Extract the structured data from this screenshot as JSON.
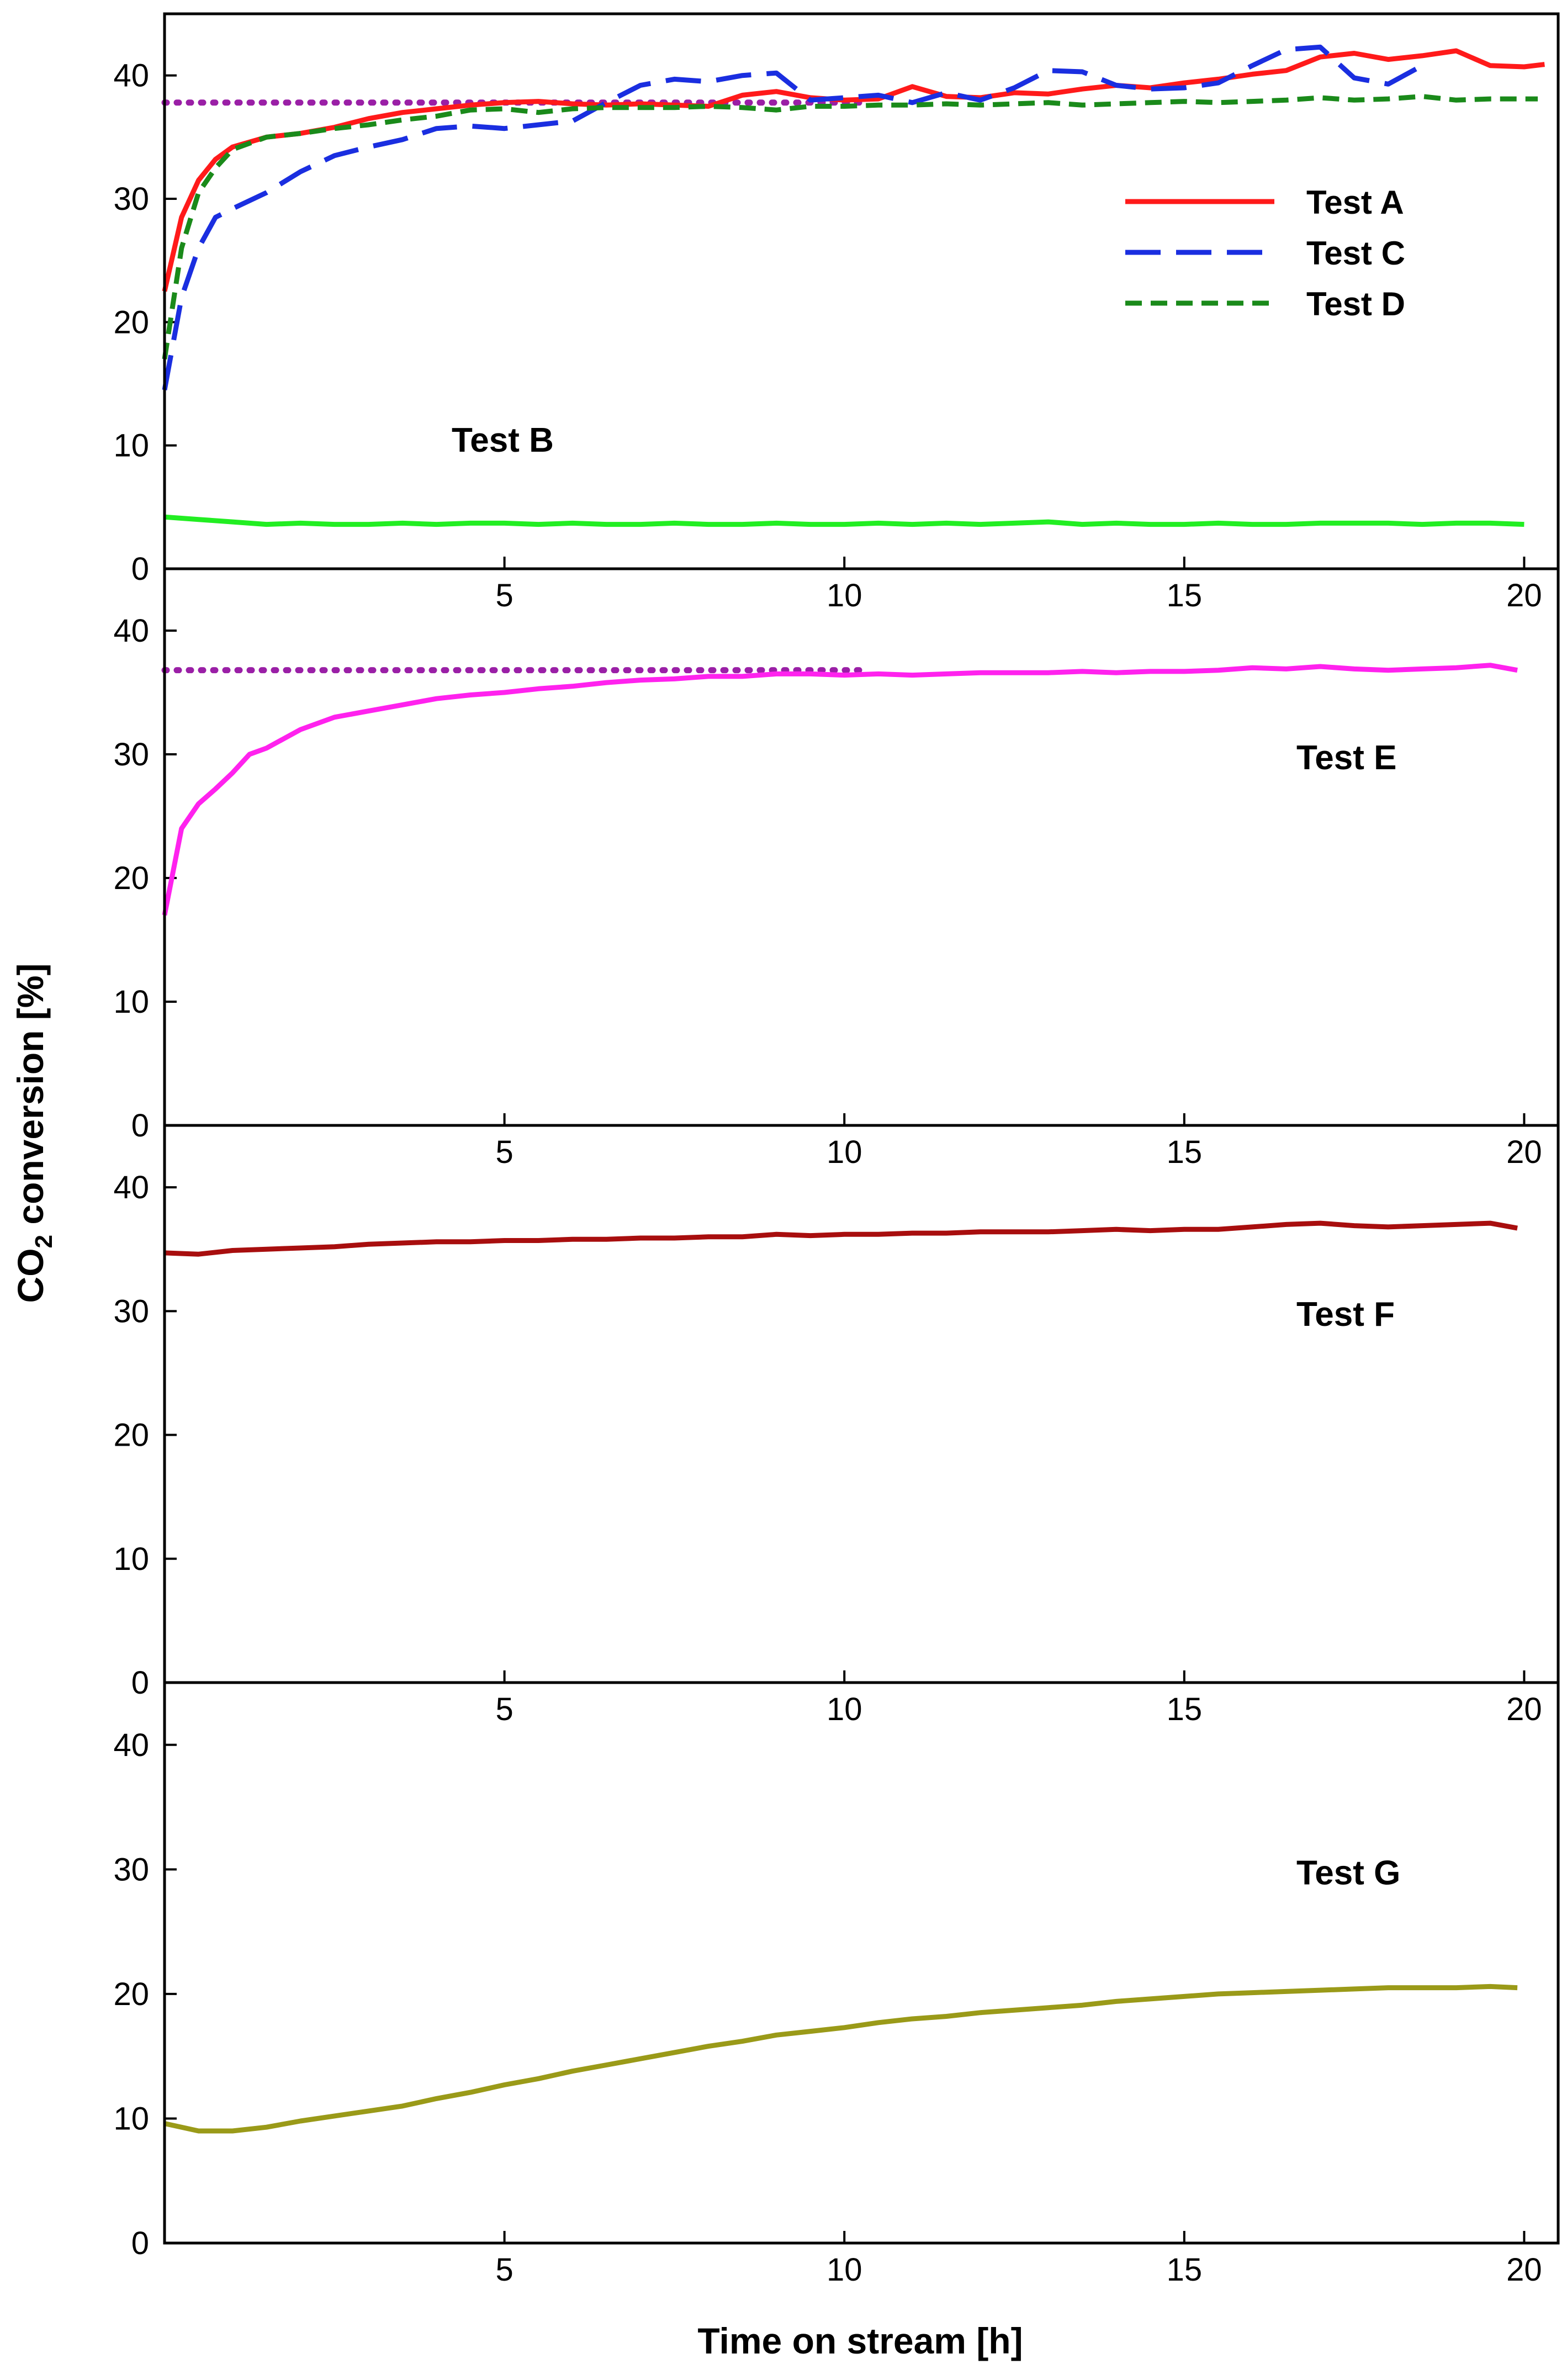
{
  "chart_data": [
    {
      "type": "line",
      "panel": "top",
      "xlim": [
        0,
        20.5
      ],
      "ylim": [
        0,
        45
      ],
      "x_ticks": [
        5,
        10,
        15,
        20
      ],
      "y_ticks": [
        0,
        10,
        20,
        30,
        40
      ],
      "grid": false,
      "legend_position": "top-right",
      "reference_line": {
        "y": 37.8,
        "x_start": 0,
        "x_end": 10.3,
        "color": "#9a1fa6",
        "style": "dotted"
      },
      "series": [
        {
          "name": "Test A",
          "legend": true,
          "color": "#ff1a1a",
          "style": "solid",
          "x": [
            0,
            0.25,
            0.5,
            0.75,
            1,
            1.5,
            2,
            2.5,
            3,
            3.5,
            4,
            4.5,
            5,
            5.5,
            6,
            6.5,
            7,
            7.5,
            8,
            8.5,
            9,
            9.5,
            10,
            10.5,
            11,
            11.5,
            12,
            12.5,
            13,
            13.5,
            14,
            14.5,
            15,
            15.5,
            16,
            16.5,
            17,
            17.5,
            18,
            18.5,
            19,
            19.5,
            20,
            20.3
          ],
          "values": [
            22.5,
            28.5,
            31.5,
            33.2,
            34.2,
            35.0,
            35.3,
            35.8,
            36.5,
            37.0,
            37.3,
            37.6,
            37.8,
            37.9,
            37.7,
            37.6,
            37.7,
            37.6,
            37.5,
            38.4,
            38.7,
            38.2,
            38.0,
            38.1,
            39.1,
            38.3,
            38.2,
            38.6,
            38.5,
            38.9,
            39.2,
            39.0,
            39.4,
            39.7,
            40.1,
            40.4,
            41.5,
            41.8,
            41.3,
            41.6,
            42.0,
            40.8,
            40.7,
            40.9
          ]
        },
        {
          "name": "Test C",
          "legend": true,
          "color": "#1a2ee0",
          "style": "long-dash",
          "x": [
            0,
            0.25,
            0.5,
            0.75,
            1,
            1.5,
            2,
            2.5,
            3,
            3.5,
            4,
            4.5,
            5,
            5.5,
            6,
            6.5,
            7,
            7.5,
            8,
            8.5,
            9,
            9.5,
            10,
            10.5,
            11,
            11.5,
            12,
            12.5,
            13,
            13.5,
            14,
            14.5,
            15,
            15.5,
            16,
            16.5,
            17,
            17.5,
            18,
            18.5
          ],
          "values": [
            14.5,
            22.0,
            26.0,
            28.5,
            29.2,
            30.5,
            32.2,
            33.5,
            34.2,
            34.8,
            35.7,
            35.9,
            35.7,
            36.0,
            36.3,
            37.8,
            39.2,
            39.7,
            39.5,
            40.0,
            40.2,
            38.0,
            38.2,
            38.4,
            37.8,
            38.6,
            38.0,
            39.0,
            40.4,
            40.3,
            39.2,
            38.9,
            39.0,
            39.4,
            40.8,
            42.1,
            42.3,
            39.8,
            39.3,
            40.8
          ]
        },
        {
          "name": "Test D",
          "legend": true,
          "color": "#1a8a1a",
          "style": "short-dash",
          "x": [
            0,
            0.25,
            0.5,
            0.75,
            1,
            1.5,
            2,
            2.5,
            3,
            3.5,
            4,
            4.5,
            5,
            5.5,
            6,
            6.5,
            7,
            7.5,
            8,
            8.5,
            9,
            9.5,
            10,
            10.5,
            11,
            11.5,
            12,
            12.5,
            13,
            13.5,
            14,
            14.5,
            15,
            15.5,
            16,
            16.5,
            17,
            17.5,
            18,
            18.5,
            19,
            19.5,
            20,
            20.2
          ],
          "values": [
            17.0,
            26.0,
            30.5,
            32.5,
            34.0,
            35.0,
            35.3,
            35.7,
            36.0,
            36.4,
            36.7,
            37.2,
            37.3,
            37.0,
            37.3,
            37.4,
            37.4,
            37.4,
            37.5,
            37.4,
            37.2,
            37.5,
            37.5,
            37.6,
            37.6,
            37.7,
            37.6,
            37.7,
            37.8,
            37.6,
            37.7,
            37.8,
            37.9,
            37.8,
            37.9,
            38.0,
            38.2,
            38.0,
            38.1,
            38.3,
            38.0,
            38.1,
            38.1,
            38.1
          ]
        },
        {
          "name": "Test B",
          "legend": false,
          "color": "#22ee22",
          "style": "solid",
          "label": "Test B",
          "label_position": "lower-left",
          "x": [
            0,
            0.5,
            1,
            1.5,
            2,
            2.5,
            3,
            3.5,
            4,
            4.5,
            5,
            5.5,
            6,
            6.5,
            7,
            7.5,
            8,
            8.5,
            9,
            9.5,
            10,
            10.5,
            11,
            11.5,
            12,
            12.5,
            13,
            13.5,
            14,
            14.5,
            15,
            15.5,
            16,
            16.5,
            17,
            17.5,
            18,
            18.5,
            19,
            19.5,
            20
          ],
          "values": [
            4.2,
            4.0,
            3.8,
            3.6,
            3.7,
            3.6,
            3.6,
            3.7,
            3.6,
            3.7,
            3.7,
            3.6,
            3.7,
            3.6,
            3.6,
            3.7,
            3.6,
            3.6,
            3.7,
            3.6,
            3.6,
            3.7,
            3.6,
            3.7,
            3.6,
            3.7,
            3.8,
            3.6,
            3.7,
            3.6,
            3.6,
            3.7,
            3.6,
            3.6,
            3.7,
            3.7,
            3.7,
            3.6,
            3.7,
            3.7,
            3.6
          ]
        }
      ],
      "legend_entries": [
        "Test A",
        "Test C",
        "Test D"
      ]
    },
    {
      "type": "line",
      "panel": "second",
      "xlim": [
        0,
        20.5
      ],
      "ylim": [
        0,
        45
      ],
      "x_ticks": [
        5,
        10,
        15,
        20
      ],
      "y_ticks": [
        0,
        10,
        20,
        30,
        40
      ],
      "grid": false,
      "reference_line": {
        "y": 36.8,
        "x_start": 0,
        "x_end": 10.3,
        "color": "#9a1fa6",
        "style": "dotted"
      },
      "series": [
        {
          "name": "Test E",
          "color": "#ff22ee",
          "style": "solid",
          "label": "Test E",
          "label_position": "right",
          "x": [
            0,
            0.25,
            0.5,
            0.75,
            1,
            1.25,
            1.5,
            2,
            2.5,
            3,
            3.5,
            4,
            4.5,
            5,
            5.5,
            6,
            6.5,
            7,
            7.5,
            8,
            8.5,
            9,
            9.5,
            10,
            10.5,
            11,
            11.5,
            12,
            12.5,
            13,
            13.5,
            14,
            14.5,
            15,
            15.5,
            16,
            16.5,
            17,
            17.5,
            18,
            18.5,
            19,
            19.5,
            19.9
          ],
          "values": [
            17.0,
            24.0,
            26.0,
            27.2,
            28.5,
            30.0,
            30.5,
            32.0,
            33.0,
            33.5,
            34.0,
            34.5,
            34.8,
            35.0,
            35.3,
            35.5,
            35.8,
            36.0,
            36.1,
            36.3,
            36.3,
            36.5,
            36.5,
            36.4,
            36.5,
            36.4,
            36.5,
            36.6,
            36.6,
            36.6,
            36.7,
            36.6,
            36.7,
            36.7,
            36.8,
            37.0,
            36.9,
            37.1,
            36.9,
            36.8,
            36.9,
            37.0,
            37.2,
            36.8
          ]
        }
      ]
    },
    {
      "type": "line",
      "panel": "third",
      "xlim": [
        0,
        20.5
      ],
      "ylim": [
        0,
        45
      ],
      "x_ticks": [
        5,
        10,
        15,
        20
      ],
      "y_ticks": [
        0,
        10,
        20,
        30,
        40
      ],
      "grid": false,
      "series": [
        {
          "name": "Test F",
          "color": "#a80e0e",
          "style": "solid",
          "label": "Test F",
          "label_position": "right",
          "x": [
            0,
            0.5,
            1,
            1.5,
            2,
            2.5,
            3,
            3.5,
            4,
            4.5,
            5,
            5.5,
            6,
            6.5,
            7,
            7.5,
            8,
            8.5,
            9,
            9.5,
            10,
            10.5,
            11,
            11.5,
            12,
            12.5,
            13,
            13.5,
            14,
            14.5,
            15,
            15.5,
            16,
            16.5,
            17,
            17.5,
            18,
            18.5,
            19,
            19.5,
            19.9
          ],
          "values": [
            34.7,
            34.6,
            34.9,
            35.0,
            35.1,
            35.2,
            35.4,
            35.5,
            35.6,
            35.6,
            35.7,
            35.7,
            35.8,
            35.8,
            35.9,
            35.9,
            36.0,
            36.0,
            36.2,
            36.1,
            36.2,
            36.2,
            36.3,
            36.3,
            36.4,
            36.4,
            36.4,
            36.5,
            36.6,
            36.5,
            36.6,
            36.6,
            36.8,
            37.0,
            37.1,
            36.9,
            36.8,
            36.9,
            37.0,
            37.1,
            36.7
          ]
        }
      ]
    },
    {
      "type": "line",
      "panel": "bottom",
      "xlim": [
        0,
        20.5
      ],
      "ylim": [
        0,
        45
      ],
      "x_ticks": [
        5,
        10,
        15,
        20
      ],
      "y_ticks": [
        0,
        10,
        20,
        30,
        40
      ],
      "grid": false,
      "series": [
        {
          "name": "Test G",
          "color": "#9a9a18",
          "style": "solid",
          "label": "Test G",
          "label_position": "right",
          "x": [
            0,
            0.5,
            1,
            1.5,
            2,
            2.5,
            3,
            3.5,
            4,
            4.5,
            5,
            5.5,
            6,
            6.5,
            7,
            7.5,
            8,
            8.5,
            9,
            9.5,
            10,
            10.5,
            11,
            11.5,
            12,
            12.5,
            13,
            13.5,
            14,
            14.5,
            15,
            15.5,
            16,
            16.5,
            17,
            17.5,
            18,
            18.5,
            19,
            19.5,
            19.9
          ],
          "values": [
            9.6,
            9.0,
            9.0,
            9.3,
            9.8,
            10.2,
            10.6,
            11.0,
            11.6,
            12.1,
            12.7,
            13.2,
            13.8,
            14.3,
            14.8,
            15.3,
            15.8,
            16.2,
            16.7,
            17.0,
            17.3,
            17.7,
            18.0,
            18.2,
            18.5,
            18.7,
            18.9,
            19.1,
            19.4,
            19.6,
            19.8,
            20.0,
            20.1,
            20.2,
            20.3,
            20.4,
            20.5,
            20.5,
            20.5,
            20.6,
            20.5
          ]
        }
      ]
    }
  ],
  "figure": {
    "ylabel_main": "CO",
    "ylabel_sub": "2",
    "ylabel_rest": " conversion [%]",
    "xlabel": "Time on stream [h]"
  }
}
